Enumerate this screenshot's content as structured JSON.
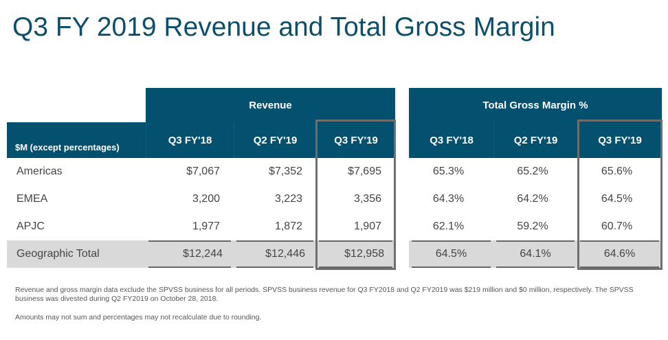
{
  "title": "Q3 FY 2019 Revenue and Total Gross Margin",
  "table": {
    "label_header": "$M (except percentages)",
    "groups": [
      "Revenue",
      "Total Gross Margin %"
    ],
    "periods": [
      "Q3 FY'18",
      "Q2 FY'19",
      "Q3 FY'19"
    ],
    "rows": [
      {
        "label": "Americas",
        "revenue": [
          "$7,067",
          "$7,352",
          "$7,695"
        ],
        "margin": [
          "65.3%",
          "65.2%",
          "65.6%"
        ]
      },
      {
        "label": "EMEA",
        "revenue": [
          "3,200",
          "3,223",
          "3,356"
        ],
        "margin": [
          "64.3%",
          "64.2%",
          "64.5%"
        ]
      },
      {
        "label": "APJC",
        "revenue": [
          "1,977",
          "1,872",
          "1,907"
        ],
        "margin": [
          "62.1%",
          "59.2%",
          "60.7%"
        ]
      },
      {
        "label": "Geographic Total",
        "revenue": [
          "$12,244",
          "$12,446",
          "$12,958"
        ],
        "margin": [
          "64.5%",
          "64.1%",
          "64.6%"
        ]
      }
    ]
  },
  "notes": [
    "Revenue and gross margin data exclude the SPVSS business for all periods. SPVSS business revenue for Q3 FY2018 and Q2 FY2019 was $219 million and $0 million, respectively. The SPVSS business was divested during Q2 FY2019 on October 28, 2018.",
    "Amounts may not sum and percentages may not recalculate due to rounding."
  ]
}
